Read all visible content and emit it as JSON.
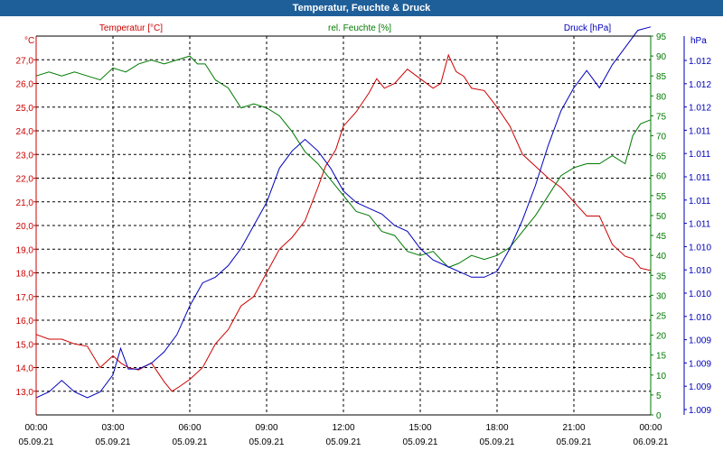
{
  "window": {
    "title": "Temperatur, Feuchte & Druck"
  },
  "colors": {
    "temperature": "#cc0000",
    "humidity": "#007a00",
    "pressure": "#0000bb",
    "title_bar": "#1f5f99",
    "grid": "#000000"
  },
  "chart_data": {
    "type": "line",
    "title": "Temperatur, Feuchte & Druck",
    "grid": true,
    "x_ticks": [
      {
        "time": "00:00",
        "date": "05.09.21"
      },
      {
        "time": "03:00",
        "date": "05.09.21"
      },
      {
        "time": "06:00",
        "date": "05.09.21"
      },
      {
        "time": "09:00",
        "date": "05.09.21"
      },
      {
        "time": "12:00",
        "date": "05.09.21"
      },
      {
        "time": "15:00",
        "date": "05.09.21"
      },
      {
        "time": "18:00",
        "date": "05.09.21"
      },
      {
        "time": "21:00",
        "date": "05.09.21"
      },
      {
        "time": "00:00",
        "date": "06.09.21"
      }
    ],
    "axes": {
      "temperature": {
        "label": "Temperatur [°C]",
        "unit": "°C",
        "ylim": [
          12.0,
          28.0
        ],
        "ticks": [
          "13,0",
          "14,0",
          "15,0",
          "16,0",
          "17,0",
          "18,0",
          "19,0",
          "20,0",
          "21,0",
          "22,0",
          "23,0",
          "24,0",
          "25,0",
          "26,0",
          "27,0"
        ]
      },
      "humidity": {
        "label": "rel. Feuchte [%]",
        "unit": "%",
        "ylim": [
          0,
          95
        ],
        "ticks": [
          "0",
          "5",
          "10",
          "15",
          "20",
          "25",
          "30",
          "35",
          "40",
          "45",
          "50",
          "55",
          "60",
          "65",
          "70",
          "75",
          "80",
          "85",
          "90",
          "95"
        ]
      },
      "pressure": {
        "label": "Druck [hPa]",
        "unit": "hPa",
        "ylim": [
          1008.9,
          1012.2
        ],
        "ticks": [
          "1.009",
          "1.009",
          "1.009",
          "1.009",
          "1.010",
          "1.010",
          "1.010",
          "1.010",
          "1.011",
          "1.011",
          "1.011",
          "1.011",
          "1.011",
          "1.012",
          "1.012",
          "1.012"
        ]
      }
    },
    "series": [
      {
        "name": "Temperatur [°C]",
        "axis": "temperature",
        "x": [
          0,
          0.5,
          1,
          1.5,
          2,
          2.5,
          2.8,
          3,
          3.3,
          3.6,
          4,
          4.5,
          5,
          5.3,
          5.6,
          6,
          6.5,
          7,
          7.5,
          8,
          8.5,
          9,
          9.5,
          10,
          10.5,
          11,
          11.3,
          11.7,
          12,
          12.5,
          13,
          13.3,
          13.6,
          14,
          14.5,
          15,
          15.5,
          15.8,
          16.1,
          16.4,
          16.7,
          17,
          17.5,
          18,
          18.5,
          19,
          19.5,
          20,
          20.5,
          21,
          21.5,
          22,
          22.5,
          23,
          23.3,
          23.6,
          24
        ],
        "y": [
          15.4,
          15.2,
          15.2,
          15.0,
          14.9,
          14.0,
          14.3,
          14.5,
          14.2,
          14.0,
          13.9,
          14.2,
          13.4,
          13.0,
          13.2,
          13.5,
          14.0,
          15.0,
          15.6,
          16.6,
          17.0,
          18.0,
          19.0,
          19.5,
          20.2,
          21.6,
          22.5,
          23.2,
          24.2,
          24.8,
          25.6,
          26.2,
          25.8,
          26.0,
          26.6,
          26.2,
          25.8,
          26.0,
          27.2,
          26.5,
          26.3,
          25.8,
          25.7,
          25.0,
          24.2,
          23.0,
          22.5,
          22.0,
          21.6,
          21.0,
          20.4,
          20.4,
          19.2,
          18.7,
          18.6,
          18.2,
          18.1
        ]
      },
      {
        "name": "rel. Feuchte [%]",
        "axis": "humidity",
        "x": [
          0,
          0.5,
          1,
          1.5,
          2,
          2.5,
          3,
          3.5,
          4,
          4.5,
          5,
          5.5,
          6,
          6.3,
          6.6,
          7,
          7.5,
          8,
          8.5,
          9,
          9.5,
          10,
          10.5,
          11,
          11.5,
          12,
          12.5,
          13,
          13.5,
          14,
          14.5,
          15,
          15.5,
          15.8,
          16.1,
          16.5,
          17,
          17.5,
          18,
          18.5,
          19,
          19.5,
          20,
          20.5,
          21,
          21.5,
          22,
          22.5,
          23,
          23.3,
          23.6,
          24
        ],
        "y": [
          85,
          86,
          85,
          86,
          85,
          84,
          87,
          86,
          88,
          89,
          88,
          89,
          90,
          88,
          88,
          84,
          82,
          77,
          78,
          77,
          75,
          71,
          66,
          63,
          59,
          55,
          51,
          50,
          46,
          45,
          41,
          40,
          41,
          39,
          37,
          38,
          40,
          39,
          40,
          42,
          46,
          50,
          55,
          60,
          62,
          63,
          63,
          65,
          63,
          70,
          73,
          74
        ]
      },
      {
        "name": "Druck [hPa]",
        "axis": "pressure",
        "x": [
          0,
          0.5,
          1,
          1.5,
          2,
          2.5,
          3,
          3.3,
          3.6,
          4,
          4.5,
          5,
          5.5,
          6,
          6.5,
          7,
          7.5,
          8,
          8.5,
          9,
          9.5,
          10,
          10.5,
          11,
          11.5,
          12,
          12.5,
          13,
          13.5,
          14,
          14.5,
          15,
          15.5,
          16,
          16.5,
          17,
          17.5,
          18,
          18.5,
          19,
          19.5,
          20,
          20.5,
          21,
          21.5,
          22,
          22.5,
          23,
          23.5,
          24
        ],
        "y": [
          1009.05,
          1009.1,
          1009.2,
          1009.1,
          1009.05,
          1009.1,
          1009.25,
          1009.48,
          1009.3,
          1009.3,
          1009.35,
          1009.45,
          1009.6,
          1009.85,
          1010.05,
          1010.1,
          1010.2,
          1010.35,
          1010.55,
          1010.75,
          1011.05,
          1011.2,
          1011.3,
          1011.2,
          1011.05,
          1010.85,
          1010.75,
          1010.7,
          1010.65,
          1010.55,
          1010.5,
          1010.35,
          1010.25,
          1010.2,
          1010.15,
          1010.1,
          1010.1,
          1010.15,
          1010.35,
          1010.6,
          1010.9,
          1011.25,
          1011.55,
          1011.75,
          1011.9,
          1011.75,
          1011.95,
          1012.1,
          1012.25,
          1012.28
        ]
      }
    ]
  }
}
